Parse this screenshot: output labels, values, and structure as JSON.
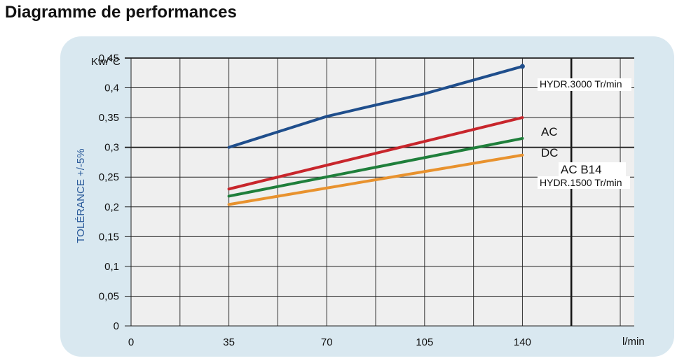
{
  "page": {
    "title": "Diagramme de performances"
  },
  "chart_data": {
    "type": "line",
    "title": "",
    "xlabel": "l/min",
    "ylabel": "TOLÉRANCE +/-5%",
    "yunit": "Kw/°C",
    "xlim": [
      0,
      180
    ],
    "ylim": [
      0,
      0.45
    ],
    "x_ticks": [
      {
        "value": 0,
        "label": "0"
      },
      {
        "value": 35,
        "label": "35"
      },
      {
        "value": 70,
        "label": "70"
      },
      {
        "value": 105,
        "label": "105"
      },
      {
        "value": 140,
        "label": "140"
      }
    ],
    "y_ticks": [
      {
        "value": 0,
        "label": "0"
      },
      {
        "value": 0.05,
        "label": "0,05"
      },
      {
        "value": 0.1,
        "label": "0,1"
      },
      {
        "value": 0.15,
        "label": "0,15"
      },
      {
        "value": 0.2,
        "label": "0,2"
      },
      {
        "value": 0.25,
        "label": "0,25"
      },
      {
        "value": 0.3,
        "label": "0,3"
      },
      {
        "value": 0.35,
        "label": "0,35"
      },
      {
        "value": 0.4,
        "label": "0,4"
      },
      {
        "value": 0.45,
        "label": "0,45"
      }
    ],
    "grid": true,
    "series": [
      {
        "name": "HYDR.3000 Tr/min",
        "color": "#1f4e8c",
        "x": [
          35,
          70,
          105,
          140
        ],
        "y": [
          0.3,
          0.352,
          0.39,
          0.436
        ]
      },
      {
        "name": "AC",
        "color": "#c8262c",
        "x": [
          35,
          140
        ],
        "y": [
          0.23,
          0.35
        ]
      },
      {
        "name": "DC",
        "color": "#1f7f3b",
        "x": [
          35,
          140
        ],
        "y": [
          0.218,
          0.315
        ]
      },
      {
        "name": "AC B14",
        "color": "#e8922e",
        "x": [
          35,
          140
        ],
        "y": [
          0.204,
          0.287
        ]
      }
    ],
    "extra_labels": [
      "HYDR.1500 Tr/min"
    ]
  }
}
